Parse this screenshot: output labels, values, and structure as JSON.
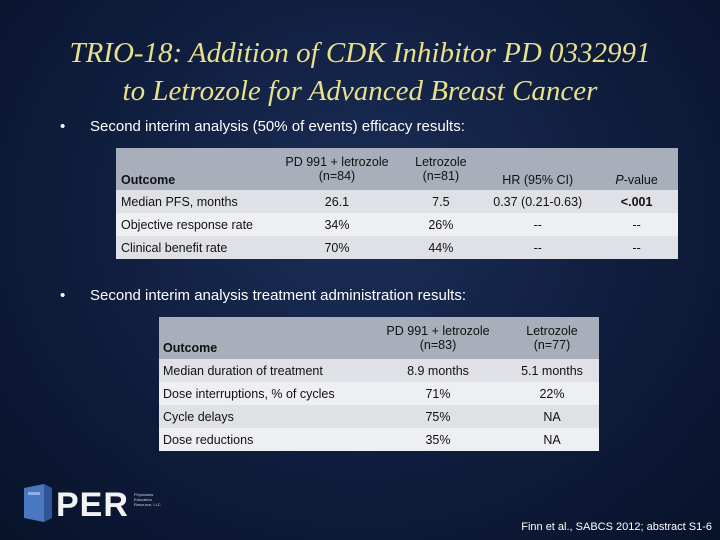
{
  "title": {
    "line1": "TRIO-18: Addition of CDK Inhibitor PD 0332991",
    "line2": "to Letrozole for Advanced Breast Cancer"
  },
  "bullets": [
    "Second interim analysis (50% of events) efficacy results:",
    "Second interim analysis treatment administration results:"
  ],
  "bullet_glyph": "•",
  "efficacy_table": {
    "headers": {
      "outcome": "Outcome",
      "arm1_line1": "PD 991 + letrozole",
      "arm1_line2": "(n=84)",
      "arm2_line1": "Letrozole",
      "arm2_line2": "(n=81)",
      "hr": "HR (95% CI)",
      "p_italic": "P",
      "p_rest": "-value"
    },
    "rows": [
      [
        "Median PFS, months",
        "26.1",
        "7.5",
        "0.37 (0.21-0.63)",
        "<.001"
      ],
      [
        "Objective response rate",
        "34%",
        "26%",
        "--",
        "--"
      ],
      [
        "Clinical benefit rate",
        "70%",
        "44%",
        "--",
        "--"
      ]
    ]
  },
  "admin_table": {
    "headers": {
      "outcome": "Outcome",
      "arm1_line1": "PD 991 + letrozole",
      "arm1_line2": "(n=83)",
      "arm2_line1": "Letrozole",
      "arm2_line2": "(n=77)"
    },
    "rows": [
      [
        "Median duration of treatment",
        "8.9 months",
        "5.1 months"
      ],
      [
        "Dose interruptions, % of cycles",
        "71%",
        "22%"
      ],
      [
        "Cycle delays",
        "75%",
        "NA"
      ],
      [
        "Dose reductions",
        "35%",
        "NA"
      ]
    ]
  },
  "logo": {
    "text": "PER",
    "subtext": "Physicians' Education Resource, LLC",
    "mark_color": "#4a78c0"
  },
  "citation": "Finn et al., SABCS 2012; abstract S1-6"
}
